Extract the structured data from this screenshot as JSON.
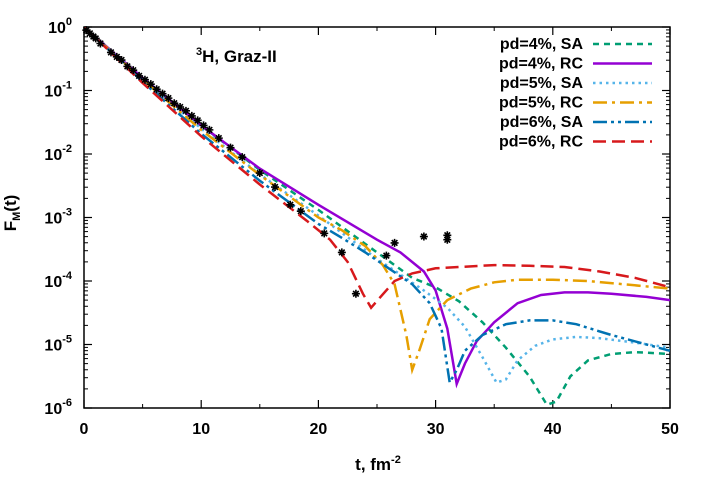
{
  "chart_data": {
    "type": "line",
    "annotation": {
      "sup": "3",
      "text": "H, Graz-II"
    },
    "xlabel": {
      "main": "t, fm",
      "sup": "-2"
    },
    "ylabel": {
      "main": "F",
      "sub": "M",
      "tail": "(t)"
    },
    "xlim": [
      0,
      50
    ],
    "ylim_log10": [
      -6,
      0
    ],
    "log_y": true,
    "grid": false,
    "legend_position": "top-right",
    "x_ticks": [
      {
        "value": 0,
        "label": "0"
      },
      {
        "value": 10,
        "label": "10"
      },
      {
        "value": 20,
        "label": "20"
      },
      {
        "value": 30,
        "label": "30"
      },
      {
        "value": 40,
        "label": "40"
      },
      {
        "value": 50,
        "label": "50"
      }
    ],
    "y_ticks": [
      {
        "exp": 0,
        "base": "10",
        "sup": "0"
      },
      {
        "exp": -1,
        "base": "10",
        "sup": "-1"
      },
      {
        "exp": -2,
        "base": "10",
        "sup": "-2"
      },
      {
        "exp": -3,
        "base": "10",
        "sup": "-3"
      },
      {
        "exp": -4,
        "base": "10",
        "sup": "-4"
      },
      {
        "exp": -5,
        "base": "10",
        "sup": "-5"
      },
      {
        "exp": -6,
        "base": "10",
        "sup": "-6"
      }
    ],
    "series": [
      {
        "name": "pd=4%, SA",
        "color": "#009e73",
        "dash": "short",
        "points": [
          [
            0,
            0
          ],
          [
            2,
            -0.32
          ],
          [
            5,
            -0.8
          ],
          [
            10,
            -1.55
          ],
          [
            15,
            -2.25
          ],
          [
            20,
            -2.88
          ],
          [
            25,
            -3.55
          ],
          [
            28,
            -3.95
          ],
          [
            30,
            -4.1
          ],
          [
            32,
            -4.32
          ],
          [
            34,
            -4.65
          ],
          [
            36,
            -5.05
          ],
          [
            38,
            -5.5
          ],
          [
            39.5,
            -5.95
          ],
          [
            40.3,
            -5.9
          ],
          [
            41.5,
            -5.5
          ],
          [
            43,
            -5.25
          ],
          [
            45,
            -5.15
          ],
          [
            47,
            -5.12
          ],
          [
            50,
            -5.15
          ]
        ]
      },
      {
        "name": "pd=4%, RC",
        "color": "#9400d3",
        "dash": "solid",
        "points": [
          [
            0,
            0
          ],
          [
            2,
            -0.32
          ],
          [
            5,
            -0.8
          ],
          [
            10,
            -1.55
          ],
          [
            15,
            -2.23
          ],
          [
            20,
            -2.8
          ],
          [
            25,
            -3.35
          ],
          [
            27,
            -3.55
          ],
          [
            29,
            -3.85
          ],
          [
            30,
            -4.15
          ],
          [
            31,
            -4.75
          ],
          [
            31.8,
            -5.62
          ],
          [
            32.5,
            -5.3
          ],
          [
            33.5,
            -4.95
          ],
          [
            35,
            -4.65
          ],
          [
            37,
            -4.35
          ],
          [
            39,
            -4.22
          ],
          [
            41,
            -4.18
          ],
          [
            43,
            -4.18
          ],
          [
            45,
            -4.2
          ],
          [
            48,
            -4.25
          ],
          [
            50,
            -4.3
          ]
        ]
      },
      {
        "name": "pd=5%, SA",
        "color": "#56b4e9",
        "dash": "dot",
        "points": [
          [
            0,
            0
          ],
          [
            2,
            -0.33
          ],
          [
            5,
            -0.82
          ],
          [
            10,
            -1.6
          ],
          [
            15,
            -2.32
          ],
          [
            20,
            -2.97
          ],
          [
            25,
            -3.65
          ],
          [
            27,
            -3.9
          ],
          [
            29,
            -4.15
          ],
          [
            31,
            -4.42
          ],
          [
            32.5,
            -4.72
          ],
          [
            34,
            -5.2
          ],
          [
            35.2,
            -5.6
          ],
          [
            36,
            -5.55
          ],
          [
            37,
            -5.25
          ],
          [
            38.5,
            -5.02
          ],
          [
            40,
            -4.92
          ],
          [
            42,
            -4.88
          ],
          [
            44,
            -4.9
          ],
          [
            47,
            -4.97
          ],
          [
            50,
            -5.05
          ]
        ]
      },
      {
        "name": "pd=5%, RC",
        "color": "#e69f00",
        "dash": "dashdot",
        "points": [
          [
            0,
            0
          ],
          [
            2,
            -0.33
          ],
          [
            5,
            -0.83
          ],
          [
            10,
            -1.62
          ],
          [
            15,
            -2.33
          ],
          [
            20,
            -3.0
          ],
          [
            22,
            -3.2
          ],
          [
            24,
            -3.45
          ],
          [
            25.5,
            -3.75
          ],
          [
            26.5,
            -4.05
          ],
          [
            27.5,
            -4.85
          ],
          [
            28,
            -5.4
          ],
          [
            28.6,
            -5.1
          ],
          [
            29.5,
            -4.6
          ],
          [
            31,
            -4.3
          ],
          [
            33,
            -4.12
          ],
          [
            35,
            -4.02
          ],
          [
            37,
            -3.98
          ],
          [
            40,
            -3.98
          ],
          [
            43,
            -4.0
          ],
          [
            46,
            -4.05
          ],
          [
            50,
            -4.12
          ]
        ]
      },
      {
        "name": "pd=6%, SA",
        "color": "#0072b2",
        "dash": "dashdotdot",
        "points": [
          [
            0,
            0
          ],
          [
            2,
            -0.34
          ],
          [
            5,
            -0.86
          ],
          [
            10,
            -1.68
          ],
          [
            15,
            -2.42
          ],
          [
            20,
            -3.1
          ],
          [
            22,
            -3.32
          ],
          [
            24,
            -3.55
          ],
          [
            26,
            -3.8
          ],
          [
            28,
            -4.05
          ],
          [
            29.5,
            -4.35
          ],
          [
            30.5,
            -4.75
          ],
          [
            31.2,
            -5.6
          ],
          [
            31.8,
            -5.4
          ],
          [
            32.5,
            -5.1
          ],
          [
            34,
            -4.85
          ],
          [
            36,
            -4.68
          ],
          [
            38,
            -4.62
          ],
          [
            40,
            -4.62
          ],
          [
            42,
            -4.68
          ],
          [
            45,
            -4.85
          ],
          [
            48,
            -5.0
          ],
          [
            50,
            -5.1
          ]
        ]
      },
      {
        "name": "pd=6%, RC",
        "color": "#d7191c",
        "dash": "long",
        "points": [
          [
            0,
            0
          ],
          [
            2,
            -0.35
          ],
          [
            5,
            -0.88
          ],
          [
            10,
            -1.72
          ],
          [
            15,
            -2.48
          ],
          [
            19,
            -3.05
          ],
          [
            21,
            -3.35
          ],
          [
            22.5,
            -3.7
          ],
          [
            23.8,
            -4.2
          ],
          [
            24.5,
            -4.42
          ],
          [
            25.3,
            -4.25
          ],
          [
            26.5,
            -4.0
          ],
          [
            28,
            -3.88
          ],
          [
            30,
            -3.8
          ],
          [
            32,
            -3.78
          ],
          [
            35,
            -3.75
          ],
          [
            38,
            -3.76
          ],
          [
            41,
            -3.78
          ],
          [
            44,
            -3.85
          ],
          [
            47,
            -3.95
          ],
          [
            50,
            -4.1
          ]
        ]
      }
    ],
    "experimental_points": [
      [
        0.2,
        -0.05
      ],
      [
        0.5,
        -0.1
      ],
      [
        0.8,
        -0.15
      ],
      [
        1.0,
        -0.18
      ],
      [
        1.4,
        -0.26
      ],
      [
        2.3,
        -0.4
      ],
      [
        2.8,
        -0.47
      ],
      [
        3.2,
        -0.52
      ],
      [
        3.7,
        -0.62
      ],
      [
        4.2,
        -0.68
      ],
      [
        4.7,
        -0.77
      ],
      [
        5.2,
        -0.83
      ],
      [
        5.7,
        -0.9
      ],
      [
        6.2,
        -0.98
      ],
      [
        6.7,
        -1.05
      ],
      [
        7.2,
        -1.12
      ],
      [
        7.7,
        -1.2
      ],
      [
        8.2,
        -1.26
      ],
      [
        8.7,
        -1.32
      ],
      [
        9.2,
        -1.4
      ],
      [
        9.7,
        -1.47
      ],
      [
        10.2,
        -1.55
      ],
      [
        10.7,
        -1.62
      ],
      [
        11.5,
        -1.75
      ],
      [
        12.5,
        -1.9
      ],
      [
        13.5,
        -2.05
      ],
      [
        15,
        -2.3
      ],
      [
        16.3,
        -2.52
      ],
      [
        17.6,
        -2.8
      ],
      [
        18.5,
        -2.9
      ],
      [
        20.5,
        -3.25
      ],
      [
        22,
        -3.55
      ],
      [
        23.2,
        -4.2
      ],
      [
        25.8,
        -3.6
      ],
      [
        26.5,
        -3.4
      ],
      [
        29,
        -3.3
      ],
      [
        31,
        -3.28
      ],
      [
        31,
        -3.35
      ]
    ]
  }
}
